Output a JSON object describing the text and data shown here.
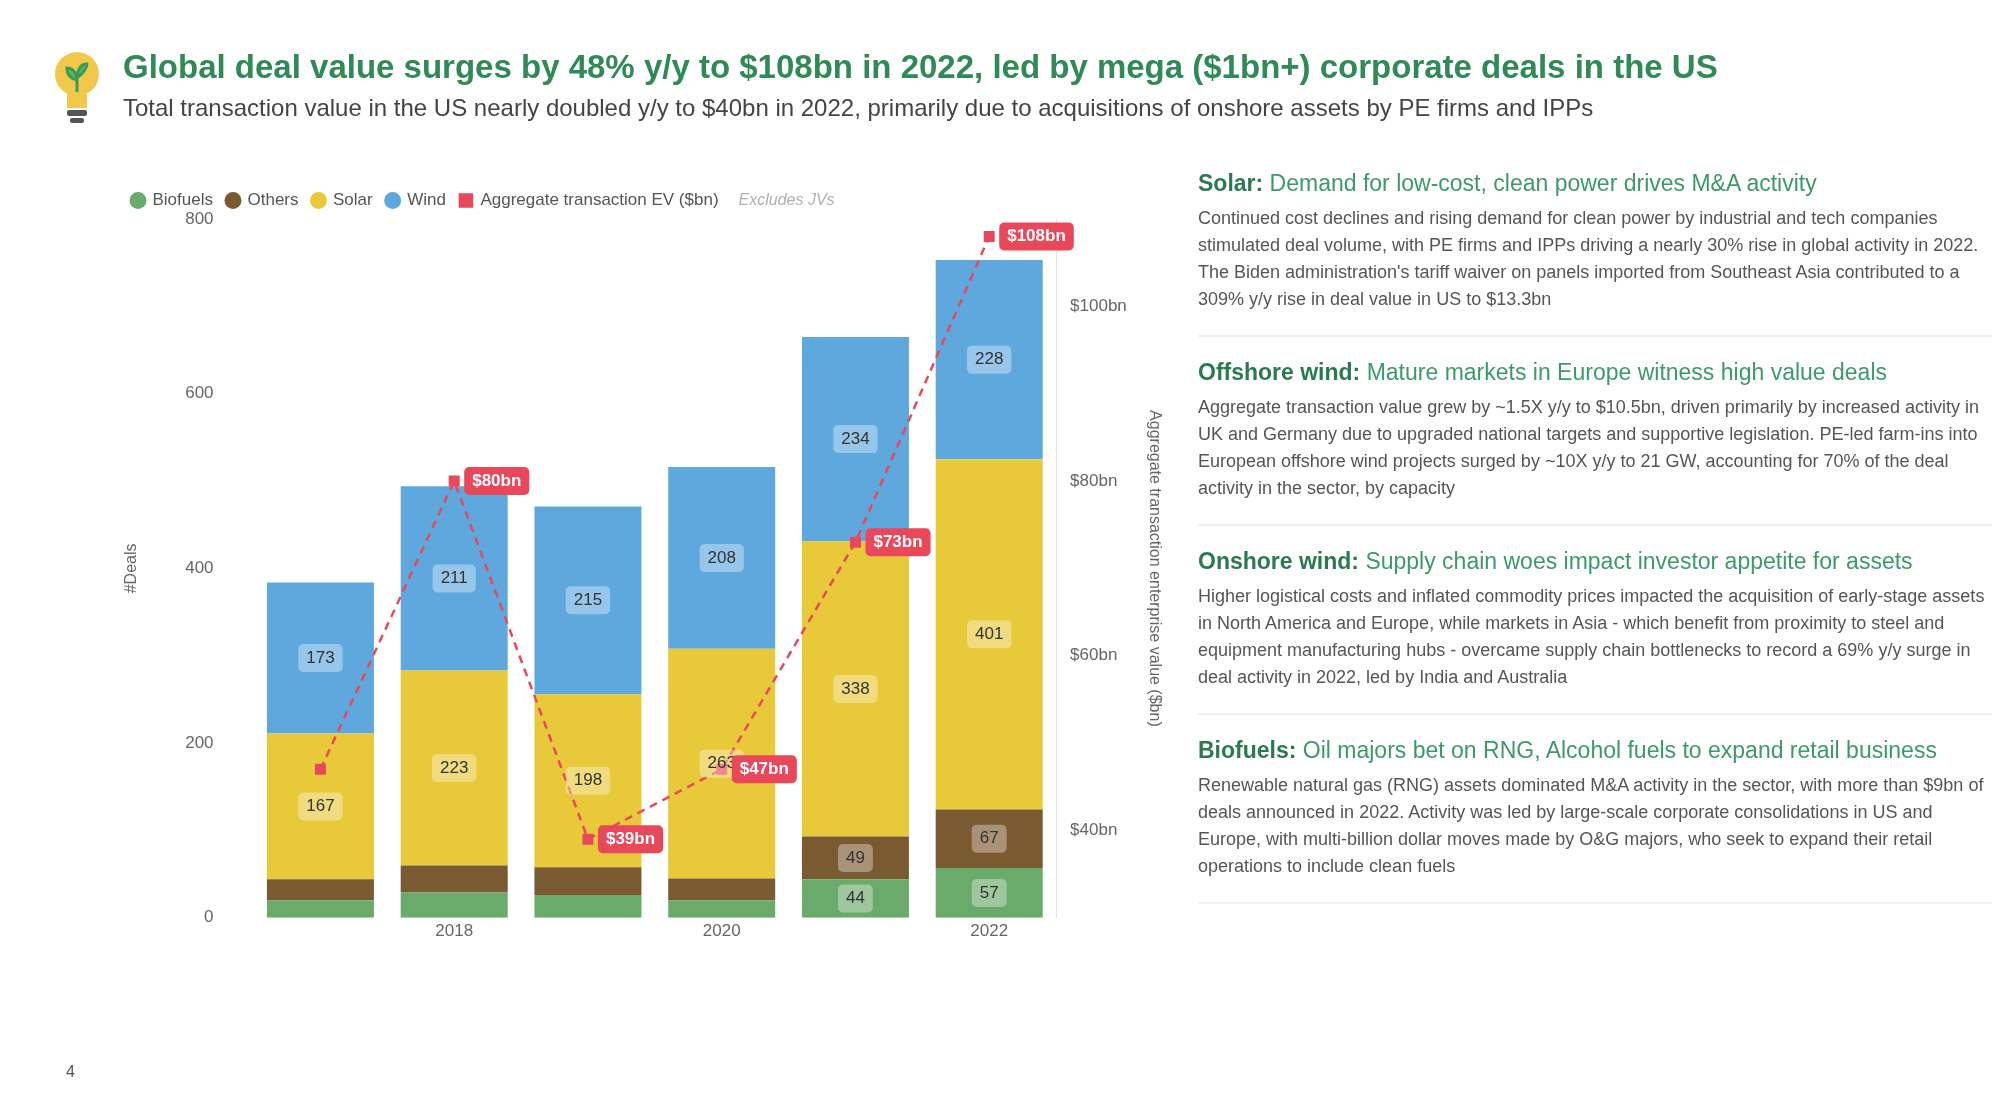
{
  "chart_data": {
    "type": "bar",
    "title": "Global deal value surges by 48% y/y to $108bn in 2022, led by mega ($1bn+) corporate deals in the US",
    "subtitle": "Total transaction value in the US nearly doubled y/y to $40bn in 2022, primarily due to acquisitions of onshore assets by PE firms and IPPs",
    "categories": [
      null,
      "2018",
      null,
      "2020",
      null,
      "2022"
    ],
    "stacked": true,
    "series": [
      {
        "name": "Biofuels",
        "color": "#6aaa6a",
        "values": [
          20,
          29,
          26,
          20,
          44,
          57
        ],
        "value_labels": [
          null,
          null,
          null,
          null,
          "44",
          "57"
        ]
      },
      {
        "name": "Others",
        "color": "#7a5a30",
        "values": [
          24,
          31,
          32,
          25,
          49,
          67
        ],
        "value_labels": [
          null,
          null,
          null,
          null,
          "49",
          "67"
        ]
      },
      {
        "name": "Solar",
        "color": "#e8c93a",
        "values": [
          167,
          223,
          198,
          263,
          338,
          401
        ],
        "value_labels": [
          "167",
          "223",
          "198",
          "263",
          "338",
          "401"
        ]
      },
      {
        "name": "Wind",
        "color": "#5fa8de",
        "values": [
          173,
          211,
          215,
          208,
          234,
          228
        ],
        "value_labels": [
          "173",
          "211",
          "215",
          "208",
          "234",
          "228"
        ]
      },
      {
        "name": "Aggregate transaction EV ($bn)",
        "type": "line",
        "axis": "y2",
        "color": "#e8485a",
        "line_style": "dashed",
        "marker": "square",
        "values": [
          47,
          80,
          39,
          47,
          73,
          108
        ],
        "value_labels": [
          null,
          "$80bn",
          "$39bn",
          "$47bn",
          "$73bn",
          "$108bn"
        ]
      }
    ],
    "ylabel": "#Deals",
    "ylim": [
      0,
      800
    ],
    "yticks": [
      0,
      200,
      400,
      600,
      800
    ],
    "y2label": "Aggregate transaction enterprise value ($bn)",
    "y2lim": [
      30,
      110
    ],
    "y2ticks": [
      {
        "value": 40,
        "label": "$40bn"
      },
      {
        "value": 60,
        "label": "$60bn"
      },
      {
        "value": 80,
        "label": "$80bn"
      },
      {
        "value": 100,
        "label": "$100bn"
      }
    ],
    "grid": false,
    "legend": "top left",
    "annotations": [
      "Excludes JVs",
      "Solar: Demand for low-cost, clean power drives M&A activity",
      "Continued cost declines and rising demand for clean power by industrial and tech companies stimulated deal volume, with PE firms and IPPs driving a nearly 30% rise in global activity in 2022. The Biden administration's tariff waiver on panels imported from Southeast Asia contributed to a 309% y/y rise in deal value in US to $13.3bn",
      "Offshore wind:  Mature markets in Europe witness high value deals",
      "Aggregate transaction value grew by ~1.5X y/y to $10.5bn, driven primarily by increased activity in UK and Germany due to upgraded national targets and supportive legislation. PE-led farm-ins into European offshore wind projects surged by ~10X y/y to 21 GW, accounting for 70% of the deal activity in the sector, by capacity",
      "Onshore wind: Supply chain woes impact investor appetite for assets",
      "Higher logistical costs and inflated commodity prices impacted the acquisition of early-stage assets in North America and Europe, while markets in Asia - which benefit from proximity to steel and equipment manufacturing hubs - overcame supply chain bottlenecks to record a 69% y/y surge in deal activity in 2022, led by India and Australia",
      "Biofuels: Oil majors bet on RNG, Alcohol fuels to expand retail business",
      "Renewable natural gas (RNG) assets dominated M&A activity in the sector, with more than $9bn of deals announced in 2022. Activity was led by large-scale corporate consolidations in US and Europe, with multi-billion dollar moves made by O&G majors, who seek to expand their retail operations to include clean fuels",
      "4"
    ]
  }
}
